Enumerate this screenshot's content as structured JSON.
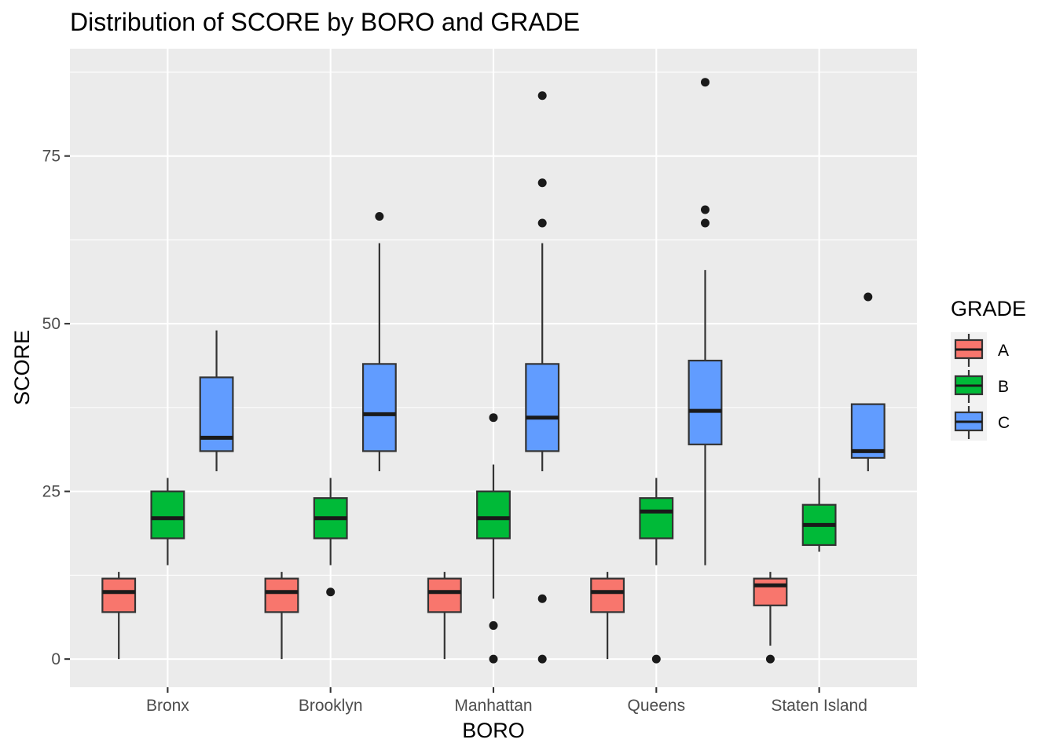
{
  "chart_data": {
    "type": "boxplot",
    "title": "Distribution of SCORE by BORO and GRADE",
    "xlabel": "BORO",
    "ylabel": "SCORE",
    "categories": [
      "Bronx",
      "Brooklyn",
      "Manhattan",
      "Queens",
      "Staten Island"
    ],
    "yticks": [
      0,
      25,
      50,
      75
    ],
    "ylim": [
      -4.2,
      91
    ],
    "grid": true,
    "legend": {
      "title": "GRADE",
      "position": "right",
      "entries": [
        "A",
        "B",
        "C"
      ]
    },
    "series": [
      {
        "name": "A",
        "color": "#F8766D",
        "boxes": [
          {
            "category": "Bronx",
            "min": 0,
            "q1": 7,
            "median": 10,
            "q3": 12,
            "max": 13,
            "outliers": []
          },
          {
            "category": "Brooklyn",
            "min": 0,
            "q1": 7,
            "median": 10,
            "q3": 12,
            "max": 13,
            "outliers": []
          },
          {
            "category": "Manhattan",
            "min": 0,
            "q1": 7,
            "median": 10,
            "q3": 12,
            "max": 13,
            "outliers": []
          },
          {
            "category": "Queens",
            "min": 0,
            "q1": 7,
            "median": 10,
            "q3": 12,
            "max": 13,
            "outliers": []
          },
          {
            "category": "Staten Island",
            "min": 2,
            "q1": 8,
            "median": 11,
            "q3": 12,
            "max": 13,
            "outliers": [
              0
            ]
          }
        ]
      },
      {
        "name": "B",
        "color": "#00BA38",
        "boxes": [
          {
            "category": "Bronx",
            "min": 14,
            "q1": 18,
            "median": 21,
            "q3": 25,
            "max": 27,
            "outliers": []
          },
          {
            "category": "Brooklyn",
            "min": 14,
            "q1": 18,
            "median": 21,
            "q3": 24,
            "max": 27,
            "outliers": [
              10
            ]
          },
          {
            "category": "Manhattan",
            "min": 9,
            "q1": 18,
            "median": 21,
            "q3": 25,
            "max": 29,
            "outliers": [
              36,
              5,
              0
            ]
          },
          {
            "category": "Queens",
            "min": 14,
            "q1": 18,
            "median": 22,
            "q3": 24,
            "max": 27,
            "outliers": [
              0
            ]
          },
          {
            "category": "Staten Island",
            "min": 16,
            "q1": 17,
            "median": 20,
            "q3": 23,
            "max": 27,
            "outliers": []
          }
        ]
      },
      {
        "name": "C",
        "color": "#619CFF",
        "boxes": [
          {
            "category": "Bronx",
            "min": 28,
            "q1": 31,
            "median": 33,
            "q3": 42,
            "max": 49,
            "outliers": []
          },
          {
            "category": "Brooklyn",
            "min": 28,
            "q1": 31,
            "median": 36.5,
            "q3": 44,
            "max": 62,
            "outliers": [
              66
            ]
          },
          {
            "category": "Manhattan",
            "min": 28,
            "q1": 31,
            "median": 36,
            "q3": 44,
            "max": 62,
            "outliers": [
              84,
              71,
              65,
              9,
              0
            ]
          },
          {
            "category": "Queens",
            "min": 14,
            "q1": 32,
            "median": 37,
            "q3": 44.5,
            "max": 58,
            "outliers": [
              86,
              67,
              65
            ]
          },
          {
            "category": "Staten Island",
            "min": 28,
            "q1": 30,
            "median": 31,
            "q3": 38,
            "max": 38,
            "outliers": [
              54
            ]
          }
        ]
      }
    ]
  }
}
